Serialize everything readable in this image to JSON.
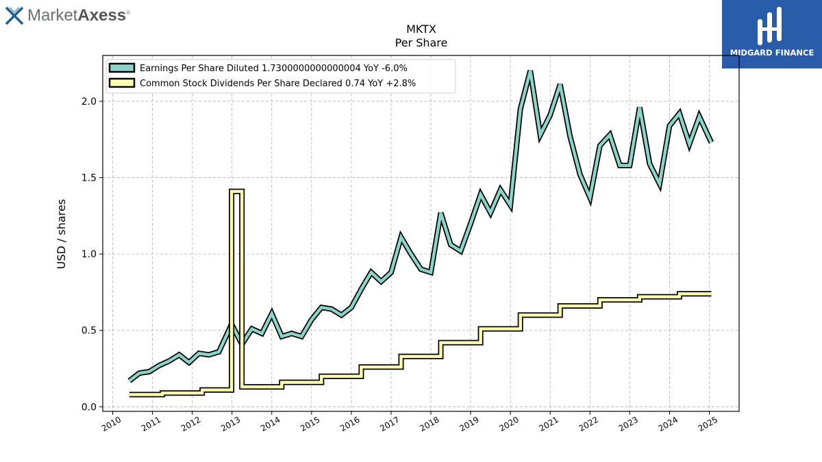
{
  "logo": {
    "name_light": "Market",
    "name_bold": "Axess",
    "mark": "®",
    "icon": "x-mark-icon"
  },
  "badge": {
    "name": "MIDGARD FINANCE",
    "icon": "midgard-logo-icon",
    "color": "#2a5ba8"
  },
  "chart_data": {
    "type": "line",
    "title": "MKTX",
    "subtitle": "Per  Share",
    "xlabel": "",
    "ylabel": "USD / shares",
    "xlim": [
      2009.75,
      2025.75
    ],
    "ylim": [
      -0.03,
      2.3
    ],
    "yticks": [
      0.0,
      0.5,
      1.0,
      1.5,
      2.0
    ],
    "ytick_labels": [
      "0.0",
      "0.5",
      "1.0",
      "1.5",
      "2.0"
    ],
    "xticks": [
      2010,
      2011,
      2012,
      2013,
      2014,
      2015,
      2016,
      2017,
      2018,
      2019,
      2020,
      2021,
      2022,
      2023,
      2024,
      2025
    ],
    "xtick_labels": [
      "2010",
      "2011",
      "2012",
      "2013",
      "2014",
      "2015",
      "2016",
      "2017",
      "2018",
      "2019",
      "2020",
      "2021",
      "2022",
      "2023",
      "2024",
      "2025"
    ],
    "grid": true,
    "legend_position": "top-left",
    "series": [
      {
        "name": "Earnings Per Share Diluted  1.7300000000000004 YoY -6.0%",
        "color": "#8dd3c7",
        "step": false,
        "points": [
          [
            2010.42,
            0.17
          ],
          [
            2010.67,
            0.22
          ],
          [
            2010.92,
            0.23
          ],
          [
            2011.17,
            0.27
          ],
          [
            2011.42,
            0.3
          ],
          [
            2011.67,
            0.34
          ],
          [
            2011.92,
            0.29
          ],
          [
            2012.17,
            0.35
          ],
          [
            2012.42,
            0.34
          ],
          [
            2012.67,
            0.36
          ],
          [
            2012.99,
            0.54
          ],
          [
            2013.25,
            0.41
          ],
          [
            2013.5,
            0.51
          ],
          [
            2013.75,
            0.48
          ],
          [
            2014.0,
            0.61
          ],
          [
            2014.25,
            0.46
          ],
          [
            2014.5,
            0.48
          ],
          [
            2014.75,
            0.46
          ],
          [
            2015.0,
            0.57
          ],
          [
            2015.25,
            0.65
          ],
          [
            2015.5,
            0.64
          ],
          [
            2015.75,
            0.6
          ],
          [
            2016.0,
            0.65
          ],
          [
            2016.25,
            0.77
          ],
          [
            2016.5,
            0.88
          ],
          [
            2016.75,
            0.82
          ],
          [
            2017.0,
            0.88
          ],
          [
            2017.25,
            1.11
          ],
          [
            2017.5,
            1.0
          ],
          [
            2017.75,
            0.9
          ],
          [
            2018.0,
            0.88
          ],
          [
            2018.25,
            1.27
          ],
          [
            2018.5,
            1.06
          ],
          [
            2018.75,
            1.02
          ],
          [
            2019.0,
            1.2
          ],
          [
            2019.25,
            1.39
          ],
          [
            2019.5,
            1.27
          ],
          [
            2019.75,
            1.42
          ],
          [
            2020.0,
            1.32
          ],
          [
            2020.25,
            1.95
          ],
          [
            2020.5,
            2.2
          ],
          [
            2020.75,
            1.78
          ],
          [
            2021.0,
            1.91
          ],
          [
            2021.25,
            2.11
          ],
          [
            2021.5,
            1.77
          ],
          [
            2021.75,
            1.52
          ],
          [
            2022.0,
            1.37
          ],
          [
            2022.25,
            1.71
          ],
          [
            2022.5,
            1.78
          ],
          [
            2022.75,
            1.58
          ],
          [
            2023.0,
            1.58
          ],
          [
            2023.25,
            1.96
          ],
          [
            2023.5,
            1.59
          ],
          [
            2023.75,
            1.46
          ],
          [
            2024.0,
            1.84
          ],
          [
            2024.25,
            1.92
          ],
          [
            2024.5,
            1.72
          ],
          [
            2024.75,
            1.9
          ],
          [
            2025.05,
            1.73
          ]
        ]
      },
      {
        "name": "Common Stock Dividends Per Share Declared  0.74 YoY +2.8%",
        "color": "#ffffb3",
        "step": true,
        "points": [
          [
            2010.42,
            0.08
          ],
          [
            2011.0,
            0.08
          ],
          [
            2011.25,
            0.09
          ],
          [
            2012.0,
            0.09
          ],
          [
            2012.25,
            0.11
          ],
          [
            2012.75,
            0.11
          ],
          [
            2012.99,
            1.41
          ],
          [
            2013.25,
            0.13
          ],
          [
            2014.0,
            0.13
          ],
          [
            2014.25,
            0.16
          ],
          [
            2015.0,
            0.16
          ],
          [
            2015.25,
            0.2
          ],
          [
            2016.0,
            0.2
          ],
          [
            2016.25,
            0.26
          ],
          [
            2017.0,
            0.26
          ],
          [
            2017.25,
            0.33
          ],
          [
            2018.0,
            0.33
          ],
          [
            2018.25,
            0.42
          ],
          [
            2019.0,
            0.42
          ],
          [
            2019.25,
            0.51
          ],
          [
            2020.0,
            0.51
          ],
          [
            2020.25,
            0.6
          ],
          [
            2021.0,
            0.6
          ],
          [
            2021.25,
            0.66
          ],
          [
            2022.0,
            0.66
          ],
          [
            2022.25,
            0.7
          ],
          [
            2023.0,
            0.7
          ],
          [
            2023.25,
            0.72
          ],
          [
            2024.0,
            0.72
          ],
          [
            2024.25,
            0.74
          ],
          [
            2025.05,
            0.74
          ]
        ]
      }
    ]
  }
}
